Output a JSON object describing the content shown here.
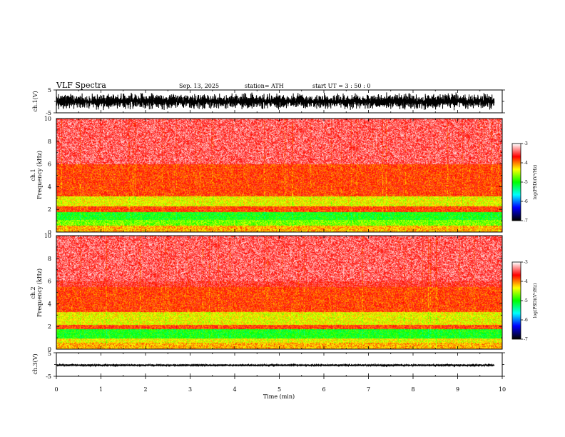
{
  "header": {
    "title": "VLF  Spectra",
    "date": "Sep. 13, 2025",
    "station": "station= ATH",
    "start_ut": "start  UT  =   3  : 50 : 0"
  },
  "chart_data": [
    {
      "id": "ch1-waveform",
      "type": "line",
      "ylabel": "ch.1(V)",
      "ylim": [
        -5,
        5
      ],
      "yticks": [
        5,
        -5
      ],
      "amplitude_range": [
        -4,
        4
      ],
      "xlim": [
        0,
        10
      ],
      "data_end_min": 9.82
    },
    {
      "id": "ch1-spectrogram",
      "type": "heatmap",
      "ylabel_top": "ch.1",
      "ylabel": "Frequency  (kHz)",
      "ylim": [
        0,
        10
      ],
      "yticks": [
        "0",
        "2",
        "4",
        "6",
        "8",
        "10"
      ],
      "xlim": [
        0,
        10
      ],
      "colorbar": {
        "label": "log(PSD)(V²/Hz)",
        "ticks": [
          "-3",
          "-4",
          "-5",
          "-6",
          "-7"
        ],
        "range": [
          -7,
          -3
        ]
      },
      "bands_khz": [
        {
          "from": 0.0,
          "to": 0.6,
          "level": "yellow-red"
        },
        {
          "from": 0.6,
          "to": 1.1,
          "level": "green-yellow"
        },
        {
          "from": 1.1,
          "to": 1.8,
          "level": "green"
        },
        {
          "from": 1.8,
          "to": 2.3,
          "level": "red"
        },
        {
          "from": 2.3,
          "to": 3.2,
          "level": "yellow"
        },
        {
          "from": 3.2,
          "to": 6.0,
          "level": "red"
        },
        {
          "from": 6.0,
          "to": 10.0,
          "level": "light-red"
        }
      ]
    },
    {
      "id": "ch2-spectrogram",
      "type": "heatmap",
      "ylabel_top": "ch.2",
      "ylabel": "Frequency  (kHz)",
      "ylim": [
        0,
        10
      ],
      "yticks": [
        "0",
        "2",
        "4",
        "6",
        "8",
        "10"
      ],
      "xlim": [
        0,
        10
      ],
      "colorbar": {
        "label": "log(PSD)(V²/Hz)",
        "ticks": [
          "-3",
          "-4",
          "-5",
          "-6",
          "-7"
        ],
        "range": [
          -7,
          -3
        ]
      },
      "bands_khz": [
        {
          "from": 0.0,
          "to": 0.6,
          "level": "yellow-red"
        },
        {
          "from": 0.6,
          "to": 1.0,
          "level": "yellow"
        },
        {
          "from": 1.0,
          "to": 1.8,
          "level": "green"
        },
        {
          "from": 1.8,
          "to": 2.2,
          "level": "red"
        },
        {
          "from": 2.2,
          "to": 3.3,
          "level": "yellow"
        },
        {
          "from": 3.3,
          "to": 5.5,
          "level": "red"
        },
        {
          "from": 5.5,
          "to": 10.0,
          "level": "light-red"
        }
      ]
    },
    {
      "id": "ch3-waveform",
      "type": "line",
      "ylabel": "ch.3(V)",
      "ylim": [
        -5,
        5
      ],
      "yticks": [
        5,
        -5
      ],
      "baseline_v": -0.3,
      "amplitude_range": [
        -0.4,
        0.4
      ],
      "xlim": [
        0,
        10
      ],
      "data_end_min": 9.82,
      "xlabel": "Time  (min)",
      "xticks": [
        "0",
        "1",
        "2",
        "3",
        "4",
        "5",
        "6",
        "7",
        "8",
        "9",
        "10"
      ]
    }
  ],
  "colors": {
    "axis": "#000000",
    "waveform": "#000000",
    "colormap": [
      "#000000",
      "#0000ff",
      "#00ffff",
      "#00ff00",
      "#ffff00",
      "#ff0000",
      "#ffffff"
    ]
  }
}
